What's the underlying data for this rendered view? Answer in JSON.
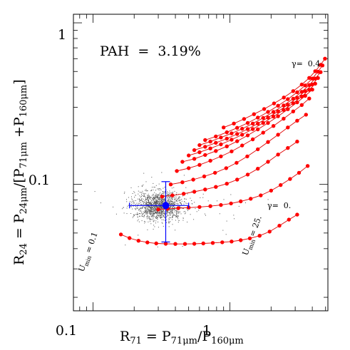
{
  "chart_data": {
    "type": "scatter",
    "xscale": "log",
    "yscale": "log",
    "xlim": [
      0.072,
      5.2
    ],
    "ylim": [
      0.0165,
      1.13
    ],
    "x_tick_labels": [
      "0.1",
      "1"
    ],
    "y_tick_labels": [
      "0.1",
      "1"
    ],
    "xlabel": {
      "main": "R",
      "main_sub": "71",
      "eq": " = P",
      "num_sub": "71μm",
      "slash": "/P",
      "den_sub": "160μm"
    },
    "ylabel": {
      "main": "R",
      "main_sub": "24",
      "eq": " = P",
      "num_sub": "24μm",
      "slash": "/[P",
      "mid_sub": "71μm",
      "plus": " +P",
      "end_sub": "160μm",
      "close": "]"
    },
    "annotations": {
      "pah": "PAH  =  3.19%",
      "gamma_top": "γ=  0.4",
      "gamma_bottom": "γ=  0.",
      "umin_low_main": "U",
      "umin_low_sub": "min",
      "umin_low_val": " = 0.1",
      "umin_high_main": "U",
      "umin_high_sub": "min",
      "umin_high_val": " = 25."
    },
    "data_point": {
      "x": 0.34,
      "y": 0.074,
      "xerr": [
        0.185,
        0.5
      ],
      "yerr": [
        0.044,
        0.104
      ],
      "color": "#0000ff"
    },
    "scatter_cloud": {
      "center_x": 0.3,
      "center_y": 0.074,
      "color": "#555555"
    },
    "series": [
      {
        "values": [
          [
            0.16,
            0.049
          ],
          [
            0.185,
            0.0465
          ],
          [
            0.215,
            0.0448
          ],
          [
            0.25,
            0.0437
          ],
          [
            0.29,
            0.0431
          ],
          [
            0.34,
            0.0429
          ],
          [
            0.4,
            0.0428
          ],
          [
            0.47,
            0.0428
          ],
          [
            0.55,
            0.0429
          ],
          [
            0.64,
            0.0431
          ],
          [
            0.75,
            0.0434
          ],
          [
            0.88,
            0.0438
          ],
          [
            1.03,
            0.0443
          ],
          [
            1.2,
            0.0451
          ],
          [
            1.4,
            0.0463
          ],
          [
            1.65,
            0.0481
          ],
          [
            1.95,
            0.051
          ],
          [
            2.3,
            0.0555
          ],
          [
            2.7,
            0.0605
          ],
          [
            3.1,
            0.065
          ]
        ]
      },
      {
        "values": [
          [
            0.3,
            0.07
          ],
          [
            0.35,
            0.0706
          ],
          [
            0.42,
            0.0712
          ],
          [
            0.5,
            0.0718
          ],
          [
            0.6,
            0.0724
          ],
          [
            0.72,
            0.0733
          ],
          [
            0.86,
            0.0745
          ],
          [
            1.02,
            0.0762
          ],
          [
            1.2,
            0.0785
          ],
          [
            1.42,
            0.0815
          ],
          [
            1.68,
            0.0855
          ],
          [
            2.0,
            0.0915
          ],
          [
            2.35,
            0.099
          ],
          [
            2.75,
            0.108
          ],
          [
            3.2,
            0.118
          ],
          [
            3.7,
            0.13
          ]
        ]
      },
      {
        "values": [
          [
            0.32,
            0.084
          ],
          [
            0.38,
            0.0855
          ],
          [
            0.46,
            0.0875
          ],
          [
            0.55,
            0.09
          ],
          [
            0.66,
            0.093
          ],
          [
            0.79,
            0.0965
          ],
          [
            0.95,
            0.101
          ],
          [
            1.13,
            0.107
          ],
          [
            1.35,
            0.115
          ],
          [
            1.6,
            0.125
          ],
          [
            1.9,
            0.138
          ],
          [
            2.25,
            0.153
          ],
          [
            2.65,
            0.168
          ],
          [
            3.1,
            0.184
          ]
        ]
      },
      {
        "values": [
          [
            0.37,
            0.1
          ],
          [
            0.45,
            0.103
          ],
          [
            0.54,
            0.107
          ],
          [
            0.65,
            0.112
          ],
          [
            0.78,
            0.118
          ],
          [
            0.94,
            0.126
          ],
          [
            1.12,
            0.136
          ],
          [
            1.34,
            0.149
          ],
          [
            1.6,
            0.165
          ],
          [
            1.9,
            0.183
          ],
          [
            2.25,
            0.203
          ],
          [
            2.65,
            0.225
          ],
          [
            3.1,
            0.248
          ],
          [
            3.6,
            0.27
          ]
        ]
      },
      {
        "values": [
          [
            0.41,
            0.121
          ],
          [
            0.5,
            0.126
          ],
          [
            0.6,
            0.132
          ],
          [
            0.72,
            0.14
          ],
          [
            0.86,
            0.149
          ],
          [
            1.03,
            0.16
          ],
          [
            1.23,
            0.174
          ],
          [
            1.47,
            0.19
          ],
          [
            1.75,
            0.209
          ],
          [
            2.08,
            0.23
          ],
          [
            2.47,
            0.255
          ],
          [
            2.9,
            0.283
          ],
          [
            3.35,
            0.31
          ],
          [
            3.8,
            0.34
          ]
        ]
      },
      {
        "values": [
          [
            0.45,
            0.138
          ],
          [
            0.55,
            0.144
          ],
          [
            0.66,
            0.152
          ],
          [
            0.79,
            0.161
          ],
          [
            0.95,
            0.172
          ],
          [
            1.13,
            0.185
          ],
          [
            1.35,
            0.201
          ],
          [
            1.6,
            0.219
          ],
          [
            1.9,
            0.24
          ],
          [
            2.25,
            0.264
          ],
          [
            2.65,
            0.292
          ],
          [
            3.1,
            0.322
          ],
          [
            3.55,
            0.353
          ],
          [
            4.0,
            0.386
          ]
        ]
      },
      {
        "values": [
          [
            0.5,
            0.151
          ],
          [
            0.6,
            0.158
          ],
          [
            0.72,
            0.167
          ],
          [
            0.86,
            0.177
          ],
          [
            1.03,
            0.189
          ],
          [
            1.23,
            0.203
          ],
          [
            1.47,
            0.22
          ],
          [
            1.75,
            0.24
          ],
          [
            2.08,
            0.263
          ],
          [
            2.47,
            0.289
          ],
          [
            2.9,
            0.318
          ],
          [
            3.35,
            0.35
          ],
          [
            3.8,
            0.385
          ],
          [
            4.2,
            0.42
          ]
        ]
      },
      {
        "values": [
          [
            0.55,
            0.163
          ],
          [
            0.66,
            0.171
          ],
          [
            0.79,
            0.181
          ],
          [
            0.95,
            0.192
          ],
          [
            1.13,
            0.205
          ],
          [
            1.35,
            0.22
          ],
          [
            1.6,
            0.238
          ],
          [
            1.9,
            0.259
          ],
          [
            2.25,
            0.283
          ],
          [
            2.65,
            0.311
          ],
          [
            3.1,
            0.343
          ],
          [
            3.55,
            0.378
          ],
          [
            4.0,
            0.415
          ],
          [
            4.4,
            0.455
          ]
        ]
      },
      {
        "values": [
          [
            0.6,
            0.175
          ],
          [
            0.72,
            0.184
          ],
          [
            0.86,
            0.195
          ],
          [
            1.03,
            0.207
          ],
          [
            1.23,
            0.221
          ],
          [
            1.47,
            0.238
          ],
          [
            1.75,
            0.258
          ],
          [
            2.08,
            0.281
          ],
          [
            2.47,
            0.308
          ],
          [
            2.9,
            0.339
          ],
          [
            3.35,
            0.374
          ],
          [
            3.8,
            0.412
          ],
          [
            4.2,
            0.452
          ],
          [
            4.6,
            0.495
          ]
        ]
      },
      {
        "values": [
          [
            0.66,
            0.188
          ],
          [
            0.79,
            0.198
          ],
          [
            0.95,
            0.21
          ],
          [
            1.13,
            0.224
          ],
          [
            1.35,
            0.24
          ],
          [
            1.6,
            0.259
          ],
          [
            1.9,
            0.281
          ],
          [
            2.25,
            0.307
          ],
          [
            2.65,
            0.337
          ],
          [
            3.1,
            0.372
          ],
          [
            3.55,
            0.41
          ],
          [
            4.0,
            0.452
          ],
          [
            4.4,
            0.498
          ],
          [
            4.75,
            0.545
          ]
        ]
      },
      {
        "values": [
          [
            0.9,
            0.225
          ],
          [
            1.07,
            0.238
          ],
          [
            1.27,
            0.254
          ],
          [
            1.5,
            0.272
          ],
          [
            1.78,
            0.293
          ],
          [
            2.1,
            0.317
          ],
          [
            2.48,
            0.345
          ],
          [
            2.9,
            0.378
          ],
          [
            3.35,
            0.415
          ],
          [
            3.8,
            0.456
          ],
          [
            4.2,
            0.502
          ],
          [
            4.6,
            0.55
          ],
          [
            4.95,
            0.6
          ]
        ]
      }
    ]
  }
}
